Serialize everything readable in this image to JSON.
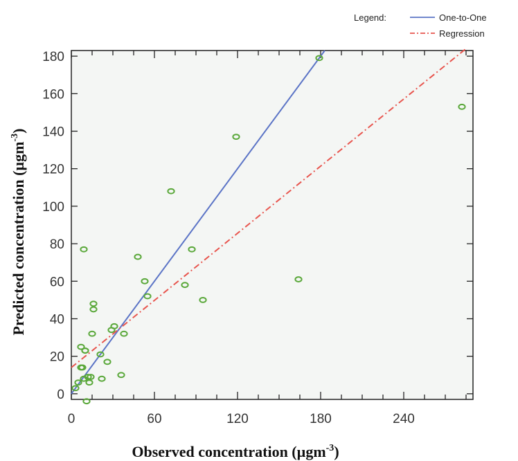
{
  "chart_data": {
    "type": "scatter",
    "xlabel": "Observed concentration (µgm",
    "xlabel_sup": "-3",
    "xlabel_close": ")",
    "ylabel": "Predicted concentration (µgm",
    "ylabel_sup": "-3",
    "ylabel_close": ")",
    "xlim": [
      0,
      290
    ],
    "ylim": [
      -3,
      183
    ],
    "xticks": [
      0,
      60,
      120,
      180,
      240
    ],
    "yticks": [
      0,
      20,
      40,
      60,
      80,
      100,
      120,
      140,
      160,
      180
    ],
    "grid": false,
    "legend": {
      "placement": "top-right",
      "title": "Legend:",
      "entries": [
        {
          "name": "One-to-One",
          "style": "solid",
          "color": "#5b74c6"
        },
        {
          "name": "Regression",
          "style": "dash-dot",
          "color": "#e8554e"
        }
      ]
    },
    "lines": [
      {
        "name": "One-to-One",
        "x": [
          0,
          183
        ],
        "y": [
          0,
          183
        ]
      },
      {
        "name": "Regression",
        "x": [
          0,
          285
        ],
        "y": [
          14,
          184
        ]
      }
    ],
    "points": {
      "color": "#5aa83a",
      "x": [
        3,
        5,
        7,
        7,
        8,
        9,
        9,
        10,
        10,
        11,
        12,
        13,
        14,
        15,
        16,
        16,
        21,
        22,
        26,
        29,
        31,
        36,
        38,
        48,
        53,
        55,
        72,
        87,
        82,
        95,
        119,
        164,
        179,
        282
      ],
      "y": [
        3,
        6,
        14,
        25,
        14,
        77,
        8,
        23,
        23,
        -4,
        9,
        6,
        9,
        32,
        45,
        48,
        21,
        8,
        17,
        34,
        36,
        10,
        32,
        73,
        60,
        52,
        108,
        77,
        58,
        50,
        137,
        61,
        179,
        153
      ]
    }
  }
}
